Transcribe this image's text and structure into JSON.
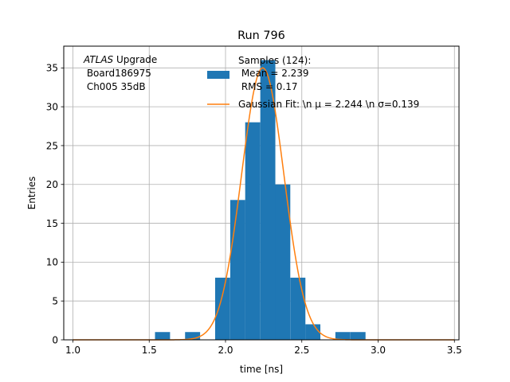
{
  "chart_data": {
    "type": "bar",
    "title": "Run 796",
    "xlabel": "time [ns]",
    "ylabel": "Entries",
    "xlim": [
      0.94,
      3.53
    ],
    "ylim": [
      0,
      37.8
    ],
    "grid": true,
    "x_ticks": [
      1.0,
      1.5,
      2.0,
      2.5,
      3.0,
      3.5
    ],
    "x_tick_labels": [
      "1.0",
      "1.5",
      "2.0",
      "2.5",
      "3.0",
      "3.5"
    ],
    "y_ticks": [
      0,
      5,
      10,
      15,
      20,
      25,
      30,
      35
    ],
    "y_tick_labels": [
      "0",
      "5",
      "10",
      "15",
      "20",
      "25",
      "30",
      "35"
    ],
    "bin_width": 0.0985,
    "bins": [
      {
        "x0": 1.538,
        "count": 1
      },
      {
        "x0": 1.735,
        "count": 1
      },
      {
        "x0": 1.932,
        "count": 8
      },
      {
        "x0": 2.031,
        "count": 18
      },
      {
        "x0": 2.129,
        "count": 28
      },
      {
        "x0": 2.228,
        "count": 36
      },
      {
        "x0": 2.326,
        "count": 20
      },
      {
        "x0": 2.425,
        "count": 8
      },
      {
        "x0": 2.523,
        "count": 2
      },
      {
        "x0": 2.72,
        "count": 1
      },
      {
        "x0": 2.819,
        "count": 1
      }
    ],
    "fit": {
      "mu": 2.244,
      "sigma": 0.139,
      "amplitude": 35,
      "x_range": [
        1.0,
        3.5
      ]
    },
    "annotation_lines": [
      "ATLAS Upgrade",
      " Board186975",
      " Ch005 35dB"
    ],
    "annotation_italic": "ATLAS",
    "annotation_rest": " Upgrade",
    "legend": {
      "position": "top-right",
      "entries": [
        {
          "kind": "patch",
          "color": "#1f77b4",
          "lines": [
            "Samples (124):",
            " Mean = 2.239",
            " RMS = 0.17"
          ]
        },
        {
          "kind": "line",
          "color": "#ff7f0e",
          "label": "Gaussian Fit: \\n μ = 2.244 \\n σ=0.139"
        }
      ]
    },
    "colors": {
      "bars": "#1f77b4",
      "fit": "#ff7f0e",
      "grid": "#b0b0b0",
      "axes": "#000000"
    }
  }
}
